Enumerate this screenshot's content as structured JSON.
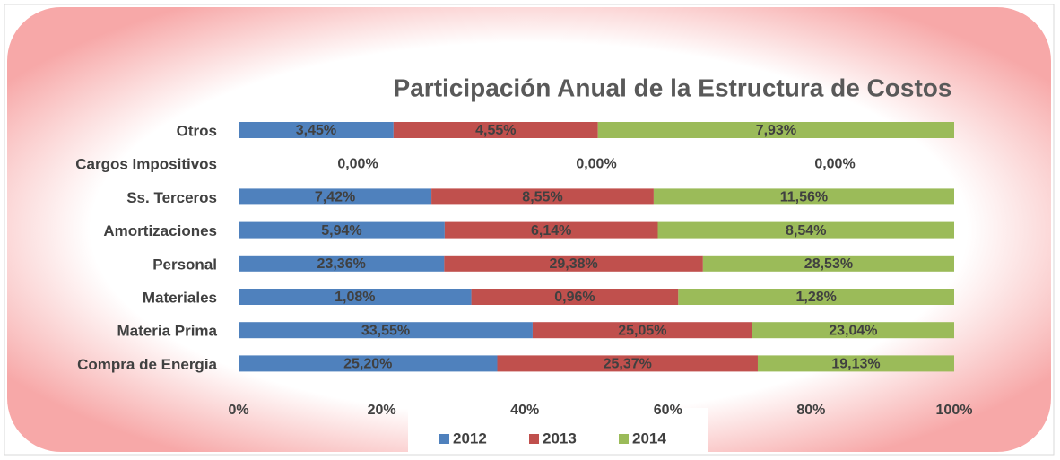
{
  "chart_data": {
    "type": "bar100_horizontal",
    "title": "Participación Anual de la Estructura de Costos",
    "categories": [
      "Otros",
      "Cargos Impositivos",
      "Ss. Terceros",
      "Amortizaciones",
      "Personal",
      "Materiales",
      "Materia Prima",
      "Compra de Energia"
    ],
    "series": [
      {
        "name": "2012",
        "color": "#4f81bd",
        "values": [
          3.45,
          0.0,
          7.42,
          5.94,
          23.36,
          1.08,
          33.55,
          25.2
        ],
        "value_labels": [
          "3,45%",
          "0,00%",
          "7,42%",
          "5,94%",
          "23,36%",
          "1,08%",
          "33,55%",
          "25,20%"
        ]
      },
      {
        "name": "2013",
        "color": "#c0504d",
        "values": [
          4.55,
          0.0,
          8.55,
          6.14,
          29.38,
          0.96,
          25.05,
          25.37
        ],
        "value_labels": [
          "4,55%",
          "0,00%",
          "8,55%",
          "6,14%",
          "29,38%",
          "0,96%",
          "25,05%",
          "25,37%"
        ]
      },
      {
        "name": "2014",
        "color": "#9bbb59",
        "values": [
          7.93,
          0.0,
          11.56,
          8.54,
          28.53,
          1.28,
          23.04,
          19.13
        ],
        "value_labels": [
          "7,93%",
          "0,00%",
          "11,56%",
          "8,54%",
          "28,53%",
          "1,28%",
          "23,04%",
          "19,13%"
        ]
      }
    ],
    "xlim": [
      0,
      100
    ],
    "xticks": [
      {
        "value": 0,
        "label": "0%"
      },
      {
        "value": 20,
        "label": "20%"
      },
      {
        "value": 40,
        "label": "40%"
      },
      {
        "value": 60,
        "label": "60%"
      },
      {
        "value": 80,
        "label": "80%"
      },
      {
        "value": 100,
        "label": "100%"
      }
    ],
    "legend": "bottom"
  }
}
